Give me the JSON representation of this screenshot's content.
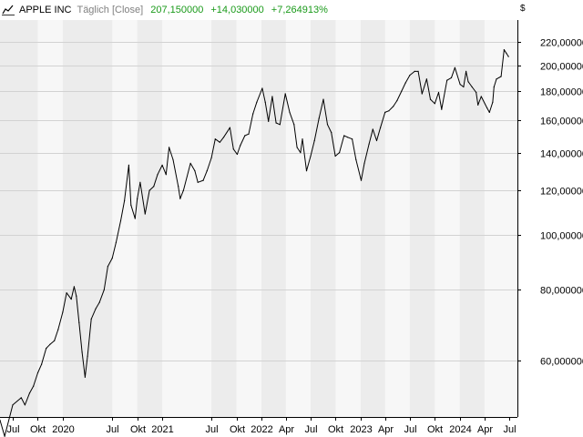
{
  "header": {
    "icon": "line-chart-icon",
    "name": "APPLE INC",
    "frequency": "Täglich [Close]",
    "price": "207,150000",
    "change": "+14,030000",
    "change_pct": "+7,264913%",
    "positive_color": "#1a9a1a"
  },
  "currency_label": "$",
  "chart_data": {
    "type": "line",
    "title": "",
    "xlabel": "",
    "ylabel": "",
    "y_scale": "log",
    "ylim": [
      48,
      240
    ],
    "x_range": [
      "2019-05-15",
      "2024-07-31"
    ],
    "grid": true,
    "y_ticks": [
      {
        "value": 60,
        "label": "60,000000"
      },
      {
        "value": 80,
        "label": "80,000000"
      },
      {
        "value": 100,
        "label": "100,000000"
      },
      {
        "value": 120,
        "label": "120,000000"
      },
      {
        "value": 140,
        "label": "140,000000"
      },
      {
        "value": 160,
        "label": "160,000000"
      },
      {
        "value": 180,
        "label": "180,000000"
      },
      {
        "value": 200,
        "label": "200,000000"
      },
      {
        "value": 220,
        "label": "220,000000"
      }
    ],
    "x_ticks": [
      {
        "date": "2019-07-01",
        "label": "Jul"
      },
      {
        "date": "2019-10-01",
        "label": "Okt"
      },
      {
        "date": "2020-01-01",
        "label": "2020"
      },
      {
        "date": "2020-07-01",
        "label": "Jul"
      },
      {
        "date": "2020-10-01",
        "label": "Okt"
      },
      {
        "date": "2021-01-01",
        "label": "2021"
      },
      {
        "date": "2021-07-01",
        "label": "Jul"
      },
      {
        "date": "2021-10-01",
        "label": "Okt"
      },
      {
        "date": "2022-01-01",
        "label": "2022"
      },
      {
        "date": "2022-04-01",
        "label": "Apr"
      },
      {
        "date": "2022-07-01",
        "label": "Jul"
      },
      {
        "date": "2022-10-01",
        "label": "Okt"
      },
      {
        "date": "2023-01-01",
        "label": "2023"
      },
      {
        "date": "2023-04-01",
        "label": "Apr"
      },
      {
        "date": "2023-07-01",
        "label": "Jul"
      },
      {
        "date": "2023-10-01",
        "label": "Okt"
      },
      {
        "date": "2024-01-01",
        "label": "2024"
      },
      {
        "date": "2024-04-01",
        "label": "Apr"
      },
      {
        "date": "2024-07-01",
        "label": "Jul"
      }
    ],
    "series": [
      {
        "color": "#000000",
        "points": [
          [
            "2019-05-15",
            47.0
          ],
          [
            "2019-06-01",
            44.0
          ],
          [
            "2019-07-01",
            50.0
          ],
          [
            "2019-08-01",
            51.5
          ],
          [
            "2019-08-15",
            50.0
          ],
          [
            "2019-09-01",
            52.5
          ],
          [
            "2019-09-15",
            54.0
          ],
          [
            "2019-10-01",
            57.0
          ],
          [
            "2019-10-15",
            59.0
          ],
          [
            "2019-11-01",
            63.0
          ],
          [
            "2019-11-15",
            64.0
          ],
          [
            "2019-12-01",
            65.0
          ],
          [
            "2019-12-15",
            68.0
          ],
          [
            "2020-01-01",
            73.0
          ],
          [
            "2020-01-15",
            79.0
          ],
          [
            "2020-02-01",
            77.0
          ],
          [
            "2020-02-12",
            81.0
          ],
          [
            "2020-02-20",
            78.0
          ],
          [
            "2020-03-01",
            70.0
          ],
          [
            "2020-03-12",
            62.0
          ],
          [
            "2020-03-23",
            56.0
          ],
          [
            "2020-04-01",
            61.0
          ],
          [
            "2020-04-15",
            71.0
          ],
          [
            "2020-05-01",
            74.0
          ],
          [
            "2020-05-15",
            76.0
          ],
          [
            "2020-06-01",
            80.0
          ],
          [
            "2020-06-15",
            88.0
          ],
          [
            "2020-07-01",
            91.0
          ],
          [
            "2020-07-15",
            97.0
          ],
          [
            "2020-08-01",
            106.0
          ],
          [
            "2020-08-15",
            115.0
          ],
          [
            "2020-08-31",
            133.0
          ],
          [
            "2020-09-08",
            113.0
          ],
          [
            "2020-09-23",
            107.0
          ],
          [
            "2020-10-01",
            116.0
          ],
          [
            "2020-10-12",
            124.0
          ],
          [
            "2020-10-30",
            109.0
          ],
          [
            "2020-11-15",
            120.0
          ],
          [
            "2020-12-01",
            122.0
          ],
          [
            "2020-12-15",
            128.0
          ],
          [
            "2021-01-01",
            133.0
          ],
          [
            "2021-01-15",
            128.0
          ],
          [
            "2021-01-26",
            143.0
          ],
          [
            "2021-02-10",
            136.0
          ],
          [
            "2021-03-01",
            122.0
          ],
          [
            "2021-03-08",
            116.0
          ],
          [
            "2021-03-20",
            120.0
          ],
          [
            "2021-04-15",
            134.0
          ],
          [
            "2021-05-01",
            130.0
          ],
          [
            "2021-05-12",
            124.0
          ],
          [
            "2021-06-01",
            125.0
          ],
          [
            "2021-06-15",
            130.0
          ],
          [
            "2021-07-01",
            137.0
          ],
          [
            "2021-07-15",
            148.0
          ],
          [
            "2021-08-01",
            146.0
          ],
          [
            "2021-08-15",
            149.0
          ],
          [
            "2021-09-07",
            155.0
          ],
          [
            "2021-09-20",
            142.0
          ],
          [
            "2021-10-04",
            139.0
          ],
          [
            "2021-10-15",
            144.0
          ],
          [
            "2021-11-01",
            150.0
          ],
          [
            "2021-11-15",
            151.0
          ],
          [
            "2021-12-01",
            164.0
          ],
          [
            "2021-12-15",
            172.0
          ],
          [
            "2022-01-04",
            182.0
          ],
          [
            "2022-01-15",
            172.0
          ],
          [
            "2022-01-27",
            159.0
          ],
          [
            "2022-02-10",
            176.0
          ],
          [
            "2022-02-24",
            158.0
          ],
          [
            "2022-03-10",
            157.0
          ],
          [
            "2022-03-30",
            178.0
          ],
          [
            "2022-04-15",
            165.0
          ],
          [
            "2022-05-01",
            157.0
          ],
          [
            "2022-05-12",
            143.0
          ],
          [
            "2022-05-25",
            140.0
          ],
          [
            "2022-06-01",
            148.0
          ],
          [
            "2022-06-16",
            130.0
          ],
          [
            "2022-07-01",
            138.0
          ],
          [
            "2022-07-15",
            147.0
          ],
          [
            "2022-08-01",
            161.0
          ],
          [
            "2022-08-17",
            174.0
          ],
          [
            "2022-09-01",
            157.0
          ],
          [
            "2022-09-15",
            152.0
          ],
          [
            "2022-09-30",
            138.0
          ],
          [
            "2022-10-15",
            140.0
          ],
          [
            "2022-11-01",
            150.0
          ],
          [
            "2022-11-15",
            149.0
          ],
          [
            "2022-12-01",
            148.0
          ],
          [
            "2022-12-15",
            136.0
          ],
          [
            "2023-01-03",
            125.0
          ],
          [
            "2023-01-15",
            134.0
          ],
          [
            "2023-02-01",
            145.0
          ],
          [
            "2023-02-15",
            154.0
          ],
          [
            "2023-03-01",
            147.0
          ],
          [
            "2023-03-15",
            155.0
          ],
          [
            "2023-04-01",
            165.0
          ],
          [
            "2023-04-15",
            166.0
          ],
          [
            "2023-05-01",
            169.0
          ],
          [
            "2023-05-15",
            173.0
          ],
          [
            "2023-06-01",
            180.0
          ],
          [
            "2023-06-15",
            186.0
          ],
          [
            "2023-07-01",
            192.0
          ],
          [
            "2023-07-19",
            195.0
          ],
          [
            "2023-08-01",
            195.0
          ],
          [
            "2023-08-15",
            178.0
          ],
          [
            "2023-09-01",
            189.0
          ],
          [
            "2023-09-15",
            174.0
          ],
          [
            "2023-10-01",
            171.0
          ],
          [
            "2023-10-15",
            179.0
          ],
          [
            "2023-10-26",
            167.0
          ],
          [
            "2023-11-15",
            188.0
          ],
          [
            "2023-12-01",
            190.0
          ],
          [
            "2023-12-14",
            198.0
          ],
          [
            "2024-01-02",
            185.0
          ],
          [
            "2024-01-15",
            183.0
          ],
          [
            "2024-01-24",
            195.0
          ],
          [
            "2024-02-01",
            187.0
          ],
          [
            "2024-02-15",
            183.0
          ],
          [
            "2024-03-01",
            179.0
          ],
          [
            "2024-03-08",
            170.0
          ],
          [
            "2024-03-20",
            176.0
          ],
          [
            "2024-04-10",
            168.0
          ],
          [
            "2024-04-19",
            165.0
          ],
          [
            "2024-05-01",
            172.0
          ],
          [
            "2024-05-06",
            183.0
          ],
          [
            "2024-05-15",
            189.0
          ],
          [
            "2024-06-01",
            191.0
          ],
          [
            "2024-06-12",
            213.0
          ],
          [
            "2024-06-20",
            210.0
          ],
          [
            "2024-06-28",
            207.15
          ]
        ]
      }
    ]
  }
}
